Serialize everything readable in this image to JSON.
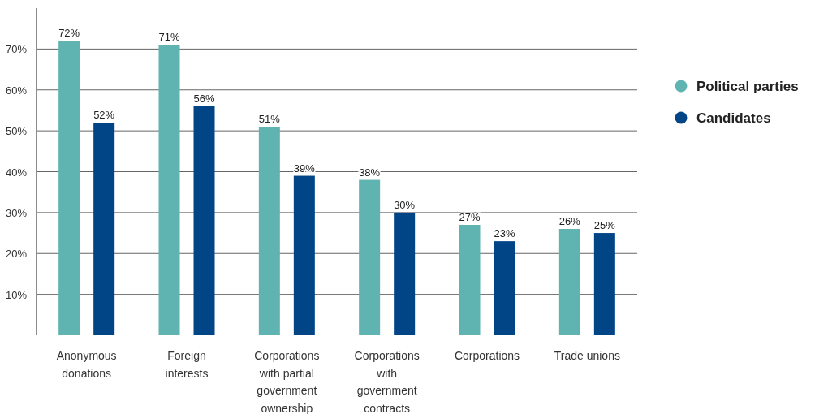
{
  "chart_data": {
    "type": "bar",
    "categories": [
      "Anonymous donations",
      "Foreign interests",
      "Corporations with partial government ownership",
      "Corporations with government contracts",
      "Corporations",
      "Trade unions"
    ],
    "series": [
      {
        "name": "Political parties",
        "color": "#5fb3b1",
        "values": [
          72,
          71,
          51,
          38,
          27,
          26
        ],
        "value_labels": [
          "72%",
          "71%",
          "51%",
          "38%",
          "27%",
          "26%"
        ]
      },
      {
        "name": "Candidates",
        "color": "#024587",
        "values": [
          52,
          56,
          39,
          30,
          23,
          25
        ],
        "value_labels": [
          "52%",
          "56%",
          "39%",
          "30%",
          "23%",
          "25%"
        ]
      }
    ],
    "ylim": [
      0,
      80
    ],
    "yticks": [
      {
        "value": 10,
        "label": "10%"
      },
      {
        "value": 20,
        "label": "20%"
      },
      {
        "value": 30,
        "label": "30%"
      },
      {
        "value": 40,
        "label": "40%"
      },
      {
        "value": 50,
        "label": "50%"
      },
      {
        "value": 60,
        "label": "60%"
      },
      {
        "value": 70,
        "label": "70%"
      }
    ],
    "grid": "y",
    "legend": "right"
  }
}
